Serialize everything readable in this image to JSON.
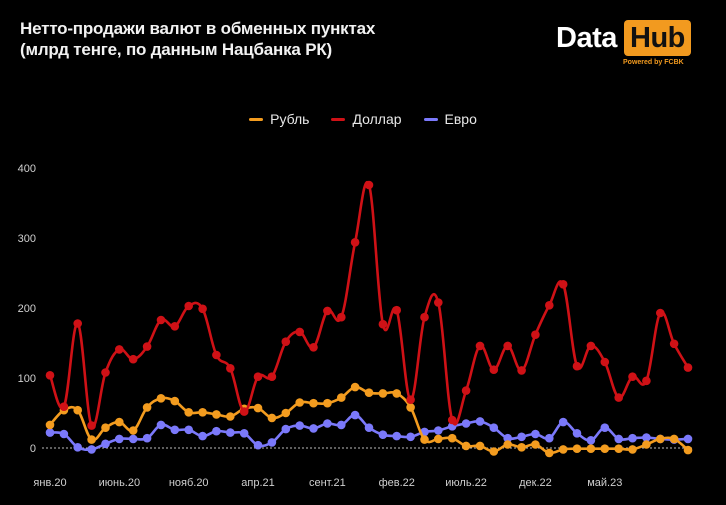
{
  "header": {
    "title_line1": "Нетто-продажи валют в обменных пунктах",
    "title_line2": "(млрд тенге, по данным Нацбанка РК)"
  },
  "logo": {
    "word1": "Data",
    "word2": "Hub",
    "tagline": "Powered by FCBK"
  },
  "chart_data": {
    "type": "line",
    "title": "Нетто-продажи валют в обменных пунктах",
    "subtitle": "(млрд тенге, по данным Нацбанка РК)",
    "xlabel": "",
    "ylabel": "",
    "ylim": [
      -15,
      430
    ],
    "yticks": [
      0,
      100,
      200,
      300,
      400
    ],
    "x_tick_labels": [
      "янв.20",
      "июнь.20",
      "нояб.20",
      "апр.21",
      "сент.21",
      "фев.22",
      "июль.22",
      "дек.22",
      "май.23"
    ],
    "x_tick_index": [
      0,
      5,
      10,
      15,
      20,
      25,
      30,
      35,
      40
    ],
    "grid": false,
    "legend_position": "top-center",
    "series": [
      {
        "name": "Рубль",
        "color": "#f39c1f",
        "values": [
          33,
          54,
          54,
          12,
          29,
          37,
          25,
          58,
          71,
          67,
          51,
          51,
          48,
          45,
          56,
          57,
          43,
          50,
          65,
          64,
          64,
          72,
          87,
          79,
          78,
          78,
          58,
          12,
          13,
          14,
          3,
          3,
          -5,
          5,
          1,
          5,
          -7,
          -2,
          -1,
          -1,
          -1,
          -1,
          -2,
          5,
          13,
          13,
          -3
        ]
      },
      {
        "name": "Доллар",
        "color": "#cf1116",
        "values": [
          104,
          59,
          178,
          32,
          108,
          141,
          127,
          145,
          183,
          174,
          203,
          199,
          133,
          114,
          52,
          102,
          102,
          152,
          166,
          144,
          196,
          187,
          294,
          376,
          177,
          197,
          69,
          187,
          208,
          40,
          82,
          146,
          112,
          146,
          111,
          162,
          204,
          234,
          117,
          146,
          123,
          72,
          102,
          96,
          193,
          149,
          115
        ]
      },
      {
        "name": "Евро",
        "color": "#7b79fb",
        "values": [
          22,
          20,
          1,
          -2,
          6,
          13,
          13,
          14,
          33,
          26,
          26,
          17,
          24,
          22,
          21,
          4,
          8,
          27,
          32,
          28,
          35,
          33,
          47,
          29,
          19,
          17,
          16,
          23,
          25,
          31,
          35,
          38,
          29,
          14,
          16,
          20,
          14,
          37,
          21,
          11,
          29,
          13,
          14,
          15,
          13,
          12,
          13
        ]
      }
    ]
  }
}
